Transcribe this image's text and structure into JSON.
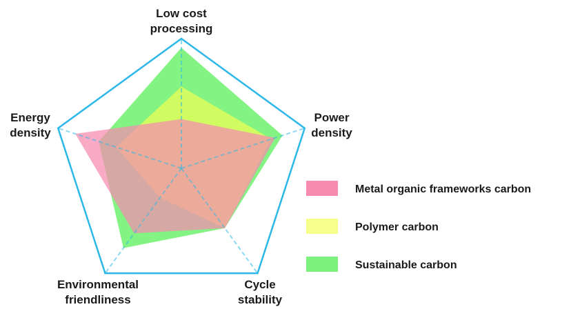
{
  "chart_data": {
    "type": "radar",
    "title": "",
    "axes": [
      {
        "key": "cost",
        "label_lines": [
          "Low cost",
          "processing"
        ]
      },
      {
        "key": "power",
        "label_lines": [
          "Power",
          "density"
        ]
      },
      {
        "key": "cycle",
        "label_lines": [
          "Cycle",
          "stability"
        ]
      },
      {
        "key": "env",
        "label_lines": [
          "Environmental",
          "friendliness"
        ]
      },
      {
        "key": "energy",
        "label_lines": [
          "Energy",
          "density"
        ]
      }
    ],
    "range": [
      0,
      1
    ],
    "series": [
      {
        "name": "Sustainable carbon",
        "color": "#7CF27C",
        "values": [
          0.93,
          0.82,
          0.57,
          0.76,
          0.67
        ]
      },
      {
        "name": "Polymer carbon",
        "color": "#EFFF55",
        "values": [
          0.63,
          0.73,
          0.57,
          0.28,
          0.53
        ]
      },
      {
        "name": "Metal organic frameworks carbon",
        "color": "#F78BB0",
        "values": [
          0.38,
          0.76,
          0.57,
          0.62,
          0.86
        ]
      }
    ],
    "legend": [
      {
        "label": "Metal organic frameworks carbon",
        "color": "#F78BB0"
      },
      {
        "label": "Polymer carbon",
        "color": "#F5FF8A"
      },
      {
        "label": "Sustainable carbon",
        "color": "#7CF27C"
      }
    ],
    "frame_color": "#2BB8E8",
    "legend_position": "right",
    "grid": true
  }
}
